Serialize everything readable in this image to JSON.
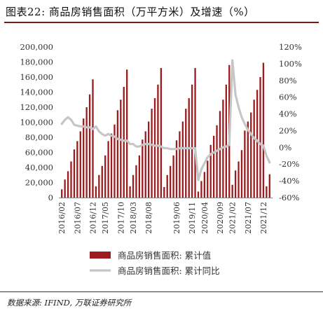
{
  "header": {
    "title": "图表22:  商品房销售面积（万平方米）及增速（%）"
  },
  "footer": {
    "source": "数据来源: IFIND, 万联证券研究所"
  },
  "colors": {
    "bar": "#9b1b1e",
    "line": "#c6c6c6",
    "accent_rule": "#7a1a1a"
  },
  "chart_data": {
    "type": "bar",
    "title": "商品房销售面积（万平方米）及增速（%）",
    "y_left": {
      "min": 0,
      "max": 200000,
      "step": 20000,
      "tick_labels": [
        "0",
        "20,000",
        "40,000",
        "60,000",
        "80,000",
        "100,000",
        "120,000",
        "140,000",
        "160,000",
        "180,000",
        "200,000"
      ]
    },
    "y_right": {
      "min": -60,
      "max": 120,
      "step": 20,
      "tick_labels": [
        "-60%",
        "-40%",
        "-20%",
        "0%",
        "20%",
        "40%",
        "60%",
        "80%",
        "100%",
        "120%"
      ]
    },
    "x_tick_labels": [
      "2016/02",
      "2016/07",
      "2016/12",
      "2017/05",
      "2017/10",
      "2018/03",
      "2018/08",
      "2019/01",
      "2019/06",
      "2019/11",
      "2020/04",
      "2020/09",
      "2021/02",
      "2021/07",
      "2021/12"
    ],
    "grid": false,
    "legend": "bottom",
    "series": [
      {
        "name": "商品房销售面积: 累计值",
        "type": "bar",
        "axis": "left",
        "x": [
          "2016/02",
          "2016/03",
          "2016/04",
          "2016/05",
          "2016/06",
          "2016/07",
          "2016/08",
          "2016/09",
          "2016/10",
          "2016/11",
          "2016/12",
          "2017/02",
          "2017/03",
          "2017/04",
          "2017/05",
          "2017/06",
          "2017/07",
          "2017/08",
          "2017/09",
          "2017/10",
          "2017/11",
          "2017/12",
          "2018/02",
          "2018/03",
          "2018/04",
          "2018/05",
          "2018/06",
          "2018/07",
          "2018/08",
          "2018/09",
          "2018/10",
          "2018/11",
          "2018/12",
          "2019/02",
          "2019/03",
          "2019/04",
          "2019/05",
          "2019/06",
          "2019/07",
          "2019/08",
          "2019/09",
          "2019/10",
          "2019/11",
          "2019/12",
          "2020/02",
          "2020/03",
          "2020/04",
          "2020/05",
          "2020/06",
          "2020/07",
          "2020/08",
          "2020/09",
          "2020/10",
          "2020/11",
          "2020/12",
          "2021/02",
          "2021/03",
          "2021/04",
          "2021/05",
          "2021/06",
          "2021/07",
          "2021/08",
          "2021/09",
          "2021/10",
          "2021/11",
          "2021/12",
          "2022/02",
          "2022/03"
        ],
        "values": [
          11000,
          24000,
          35000,
          48000,
          64000,
          75000,
          88000,
          105000,
          120000,
          137000,
          157000,
          15000,
          30000,
          42000,
          56000,
          75000,
          85000,
          97000,
          116000,
          130000,
          147000,
          170000,
          15000,
          30000,
          43000,
          56000,
          77000,
          88000,
          101000,
          118000,
          132000,
          150000,
          172000,
          14000,
          30000,
          42000,
          56000,
          76000,
          88000,
          101000,
          118000,
          132000,
          150000,
          172000,
          8000,
          22000,
          34000,
          49000,
          70000,
          82000,
          96000,
          115000,
          130000,
          150000,
          176000,
          17000,
          36000,
          48000,
          63000,
          89000,
          101000,
          113000,
          130000,
          143000,
          160000,
          179000,
          15000,
          31000
        ]
      },
      {
        "name": "商品房销售面积: 累计同比",
        "type": "line",
        "axis": "right",
        "x": [
          "2016/02",
          "2016/03",
          "2016/04",
          "2016/05",
          "2016/06",
          "2016/07",
          "2016/08",
          "2016/09",
          "2016/10",
          "2016/11",
          "2016/12",
          "2017/02",
          "2017/03",
          "2017/04",
          "2017/05",
          "2017/06",
          "2017/07",
          "2017/08",
          "2017/09",
          "2017/10",
          "2017/11",
          "2017/12",
          "2018/02",
          "2018/03",
          "2018/04",
          "2018/05",
          "2018/06",
          "2018/07",
          "2018/08",
          "2018/09",
          "2018/10",
          "2018/11",
          "2018/12",
          "2019/02",
          "2019/03",
          "2019/04",
          "2019/05",
          "2019/06",
          "2019/07",
          "2019/08",
          "2019/09",
          "2019/10",
          "2019/11",
          "2019/12",
          "2020/02",
          "2020/03",
          "2020/04",
          "2020/05",
          "2020/06",
          "2020/07",
          "2020/08",
          "2020/09",
          "2020/10",
          "2020/11",
          "2020/12",
          "2021/02",
          "2021/03",
          "2021/04",
          "2021/05",
          "2021/06",
          "2021/07",
          "2021/08",
          "2021/09",
          "2021/10",
          "2021/11",
          "2021/12",
          "2022/02",
          "2022/03"
        ],
        "values": [
          28,
          33,
          36,
          33,
          27,
          26,
          25,
          25,
          24,
          24,
          22,
          25,
          19,
          16,
          14,
          16,
          14,
          13,
          10,
          9,
          8,
          8,
          4,
          4,
          1,
          1,
          3,
          4,
          4,
          3,
          2,
          2,
          1,
          -1,
          -1,
          -2,
          -2,
          -2,
          -1,
          -1,
          -1,
          -1,
          -1,
          -1,
          -39,
          -26,
          -19,
          -12,
          -8,
          -6,
          -4,
          -2,
          0,
          1,
          3,
          104,
          63,
          48,
          36,
          28,
          21,
          16,
          11,
          8,
          4,
          2,
          -10,
          -18
        ]
      }
    ]
  }
}
